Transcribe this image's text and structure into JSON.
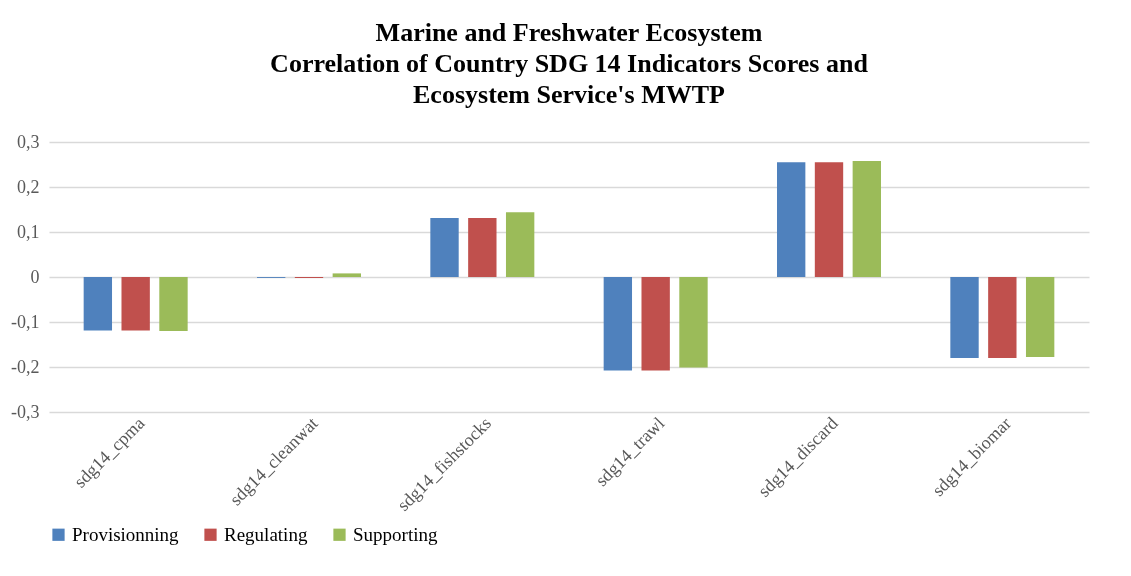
{
  "chart_data": {
    "type": "bar",
    "title": "Marine and Freshwater Ecosystem\nCorrelation  of Country SDG 14 Indicators Scores and\nEcosystem Service's MWTP",
    "categories": [
      "sdg14_cpma",
      "sdg14_cleanwat",
      "sdg14_fishstocks",
      "sdg14_trawl",
      "sdg14_discard",
      "sdg14_biomar"
    ],
    "series": [
      {
        "name": "Provisionning",
        "color": "#4f81bd",
        "values": [
          -0.119,
          -0.002,
          0.131,
          -0.208,
          0.255,
          -0.18
        ]
      },
      {
        "name": "Regulating",
        "color": "#c0504d",
        "values": [
          -0.119,
          -0.002,
          0.131,
          -0.208,
          0.255,
          -0.18
        ]
      },
      {
        "name": "Supporting",
        "color": "#9bbb59",
        "values": [
          -0.12,
          0.008,
          0.144,
          -0.201,
          0.258,
          -0.178
        ]
      }
    ],
    "ylim": [
      -0.3,
      0.3
    ],
    "yticks": [
      {
        "value": -0.3,
        "label": "-0,3"
      },
      {
        "value": -0.2,
        "label": "-0,2"
      },
      {
        "value": -0.1,
        "label": "-0,1"
      },
      {
        "value": 0,
        "label": "0"
      },
      {
        "value": 0.1,
        "label": "0,1"
      },
      {
        "value": 0.2,
        "label": "0,2"
      },
      {
        "value": 0.3,
        "label": "0,3"
      }
    ],
    "grid": "y",
    "legend": "bottom"
  }
}
